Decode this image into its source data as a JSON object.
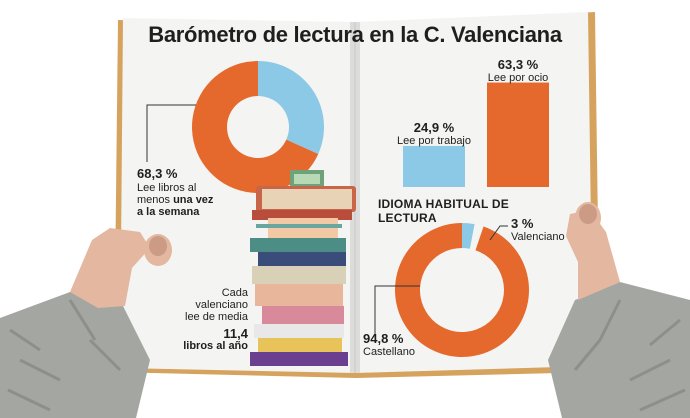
{
  "title": "Barómetro de lectura en la C. Valenciana",
  "colors": {
    "orange": "#e5692c",
    "light_blue": "#8cc9e6",
    "page": "#f4f4f2",
    "spine": "#dcdcda",
    "cover_edge": "#d5a35e",
    "sweater": "#a4a6a2",
    "skin": "#e3b7a0"
  },
  "illustration": "stack-of-books",
  "charts": {
    "frequency": {
      "value_text": "68,3 %",
      "label_line1": "Lee libros al",
      "label_line2_plain": "menos ",
      "label_line2_bold": "una vez",
      "label_line3_bold": "a la semana"
    },
    "motive": {
      "trabajo": {
        "value_text": "24,9 %",
        "label": "Lee por trabajo"
      },
      "ocio": {
        "value_text": "63,3 %",
        "label": "Lee por ocio"
      }
    },
    "average": {
      "lines": [
        "Cada",
        "valenciano",
        "lee de media"
      ],
      "value_text": "11,4",
      "unit_text": "libros al año"
    },
    "language": {
      "section_title": "IDIOMA HABITUAL DE LECTURA",
      "valenciano": {
        "value_text": "3 %",
        "label": "Valenciano"
      },
      "castellano": {
        "value_text": "94,8 %",
        "label": "Castellano"
      }
    }
  },
  "chart_data": [
    {
      "type": "pie",
      "labels": [
        "Lee libros al menos una vez a la semana"
      ],
      "values": [
        68.3
      ]
    },
    {
      "type": "bar",
      "categories": [
        "Lee por trabajo",
        "Lee por ocio"
      ],
      "values": [
        24.9,
        63.3
      ]
    },
    {
      "type": "pie",
      "labels": [
        "Castellano",
        "Valenciano"
      ],
      "values": [
        94.8,
        3
      ]
    }
  ]
}
